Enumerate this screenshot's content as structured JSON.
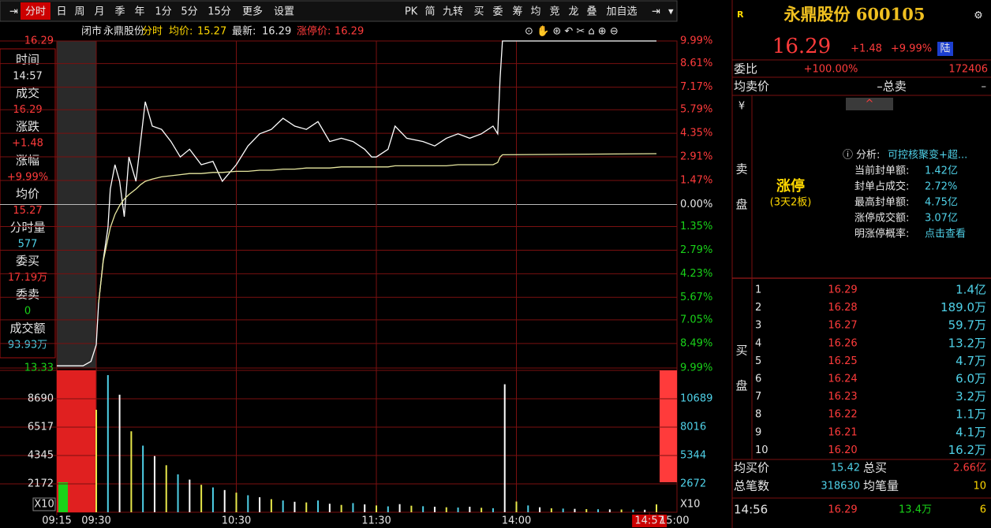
{
  "toolbar": {
    "left": [
      "分时",
      "日",
      "周",
      "月",
      "季",
      "年",
      "1分",
      "5分",
      "15分",
      "更多",
      "设置"
    ],
    "right": [
      "PK",
      "简",
      "九转",
      "买",
      "委",
      "筹",
      "均",
      "竞",
      "龙",
      "叠",
      "加自选"
    ]
  },
  "info_bar": {
    "status": "闭市",
    "name": "永鼎股份",
    "mode": "分时",
    "avg_label": "均价:",
    "avg": "15.27",
    "last_label": "最新:",
    "last": "16.29",
    "limit_label": "涨停价:",
    "limit": "16.29"
  },
  "side_panel": [
    [
      "时间",
      "14:57"
    ],
    [
      "成交",
      "16.29"
    ],
    [
      "涨跌",
      "+1.48"
    ],
    [
      "涨幅",
      "+9.99%"
    ],
    [
      "均价",
      "15.27"
    ],
    [
      "分时量",
      "577"
    ],
    [
      "委买",
      "17.19万"
    ],
    [
      "委卖",
      "0"
    ],
    [
      "成交额",
      "93.93万"
    ]
  ],
  "price_chart": {
    "type": "line",
    "x": [
      -15,
      -5,
      -2,
      0,
      1,
      3,
      5,
      6,
      8,
      10,
      12,
      14,
      17,
      19,
      21,
      24,
      28,
      32,
      36,
      40,
      45,
      50,
      54,
      60,
      65,
      70,
      75,
      80,
      85,
      90,
      95,
      100,
      105,
      110,
      115,
      118,
      120,
      125,
      128,
      133,
      140,
      145,
      150,
      155,
      160,
      165,
      170,
      172,
      173,
      174,
      240
    ],
    "series": [
      {
        "color": "#ffffff",
        "values": [
          13.35,
          13.35,
          13.39,
          13.54,
          13.92,
          14.31,
          14.6,
          14.95,
          15.17,
          15.02,
          14.7,
          15.24,
          15.02,
          15.38,
          15.74,
          15.52,
          15.49,
          15.38,
          15.24,
          15.31,
          15.17,
          15.2,
          15.02,
          15.17,
          15.34,
          15.45,
          15.49,
          15.59,
          15.52,
          15.49,
          15.56,
          15.38,
          15.41,
          15.38,
          15.31,
          15.24,
          15.24,
          15.31,
          15.52,
          15.41,
          15.38,
          15.34,
          15.41,
          15.45,
          15.41,
          15.45,
          15.52,
          15.45,
          15.95,
          16.29,
          16.29
        ]
      },
      {
        "color": "#e8e8a0",
        "values": [
          null,
          null,
          null,
          null,
          13.92,
          14.3,
          14.5,
          14.6,
          14.72,
          14.8,
          14.86,
          14.9,
          14.95,
          14.99,
          15.02,
          15.04,
          15.06,
          15.07,
          15.08,
          15.09,
          15.09,
          15.1,
          15.1,
          15.11,
          15.11,
          15.12,
          15.12,
          15.13,
          15.13,
          15.14,
          15.14,
          15.14,
          15.15,
          15.15,
          15.15,
          15.15,
          15.15,
          15.15,
          15.16,
          15.16,
          15.16,
          15.16,
          15.16,
          15.17,
          15.17,
          15.17,
          15.17,
          15.19,
          15.24,
          15.26,
          15.27
        ]
      }
    ],
    "xlim": [
      -15,
      240
    ],
    "xticks": [
      {
        "value": -15,
        "label": "09:15"
      },
      {
        "value": 0,
        "label": "09:30"
      },
      {
        "value": 60,
        "label": "10:30"
      },
      {
        "value": 120,
        "label": "11:30"
      },
      {
        "value": 180,
        "label": "14:00"
      },
      {
        "value": 237,
        "label": "14:57"
      },
      {
        "value": 240,
        "label": "15:00"
      }
    ],
    "ylim": [
      13.33,
      16.29
    ],
    "yticks": [
      13.33,
      16.29
    ],
    "y2lim": [
      -9.99,
      9.99
    ],
    "y2ticks": [
      {
        "value": 9.99,
        "label": "9.99%"
      },
      {
        "value": 8.61,
        "label": "8.61%"
      },
      {
        "value": 7.17,
        "label": "7.17%"
      },
      {
        "value": 5.79,
        "label": "5.79%"
      },
      {
        "value": 4.35,
        "label": "4.35%"
      },
      {
        "value": 2.91,
        "label": "2.91%"
      },
      {
        "value": 1.47,
        "label": "1.47%"
      },
      {
        "value": 0,
        "label": "0.00%"
      },
      {
        "value": -1.35,
        "label": "1.35%"
      },
      {
        "value": -2.79,
        "label": "2.79%"
      },
      {
        "value": -4.23,
        "label": "4.23%"
      },
      {
        "value": -5.67,
        "label": "5.67%"
      },
      {
        "value": -7.05,
        "label": "7.05%"
      },
      {
        "value": -8.49,
        "label": "8.49%"
      },
      {
        "value": -9.99,
        "label": "9.99%"
      }
    ],
    "grid": true
  },
  "volume_chart": {
    "type": "bar",
    "x": [
      0,
      5,
      10,
      15,
      20,
      25,
      30,
      35,
      40,
      45,
      50,
      55,
      60,
      65,
      70,
      75,
      80,
      85,
      90,
      95,
      100,
      105,
      110,
      115,
      120,
      125,
      130,
      135,
      140,
      145,
      150,
      155,
      160,
      165,
      170,
      175,
      180,
      185,
      190,
      195,
      200,
      205,
      210,
      215,
      220,
      225,
      230,
      235,
      240
    ],
    "values": [
      7846,
      10500,
      9000,
      6200,
      5100,
      4300,
      3600,
      2900,
      2500,
      2100,
      1900,
      1700,
      1500,
      1300,
      1150,
      1000,
      900,
      800,
      750,
      900,
      650,
      560,
      700,
      600,
      520,
      450,
      620,
      500,
      460,
      420,
      380,
      360,
      420,
      340,
      310,
      9800,
      820,
      520,
      380,
      300,
      280,
      260,
      240,
      230,
      220,
      210,
      200,
      190,
      600
    ],
    "colors": [
      "#e8e84a",
      "#4fd1e8",
      "#ffffff"
    ],
    "ylim": [
      0,
      10862
    ],
    "yticks": [
      2172,
      4345,
      6517,
      8690
    ],
    "y2lim": [
      0,
      13361
    ],
    "y2ticks": [
      2672,
      5344,
      8016,
      10689
    ],
    "multiplier": "X10"
  },
  "quote": {
    "flag": "R",
    "title": "永鼎股份 600105",
    "price": "16.29",
    "change": "+1.48",
    "pct": "+9.99%",
    "tag": "陆"
  },
  "order_ratio": {
    "label": "委比",
    "pct": "+100.00%",
    "diff": "172406"
  },
  "ask_avg": {
    "label": "均卖价",
    "total_label": "–总卖",
    "total": "–"
  },
  "ask_side": {
    "currency": "¥",
    "label": [
      "卖",
      "盘"
    ],
    "status": "涨停",
    "streak": "(3天2板)",
    "analysis_label": "分析:",
    "analysis": "可控核聚变+超...",
    "stats": [
      [
        "当前封单额:",
        "1.42亿"
      ],
      [
        "封单占成交:",
        "2.72%"
      ],
      [
        "最高封单额:",
        "4.75亿"
      ],
      [
        "涨停成交额:",
        "3.07亿"
      ],
      [
        "明涨停概率:",
        "点击查看"
      ]
    ]
  },
  "bids": {
    "label": [
      "买",
      "盘"
    ],
    "rows": [
      [
        "1",
        "16.29",
        "1.4亿"
      ],
      [
        "2",
        "16.28",
        "189.0万"
      ],
      [
        "3",
        "16.27",
        "59.7万"
      ],
      [
        "4",
        "16.26",
        "13.2万"
      ],
      [
        "5",
        "16.25",
        "4.7万"
      ],
      [
        "6",
        "16.24",
        "6.0万"
      ],
      [
        "7",
        "16.23",
        "3.2万"
      ],
      [
        "8",
        "16.22",
        "1.1万"
      ],
      [
        "9",
        "16.21",
        "4.1万"
      ],
      [
        "10",
        "16.20",
        "16.2万"
      ]
    ]
  },
  "summary": [
    [
      "均买价",
      "15.42",
      "总买",
      "2.66亿"
    ],
    [
      "总笔数",
      "318630",
      "均笔量",
      "10"
    ]
  ],
  "trades": [
    [
      "14:56",
      "16.29",
      "13.4万",
      "6"
    ]
  ]
}
